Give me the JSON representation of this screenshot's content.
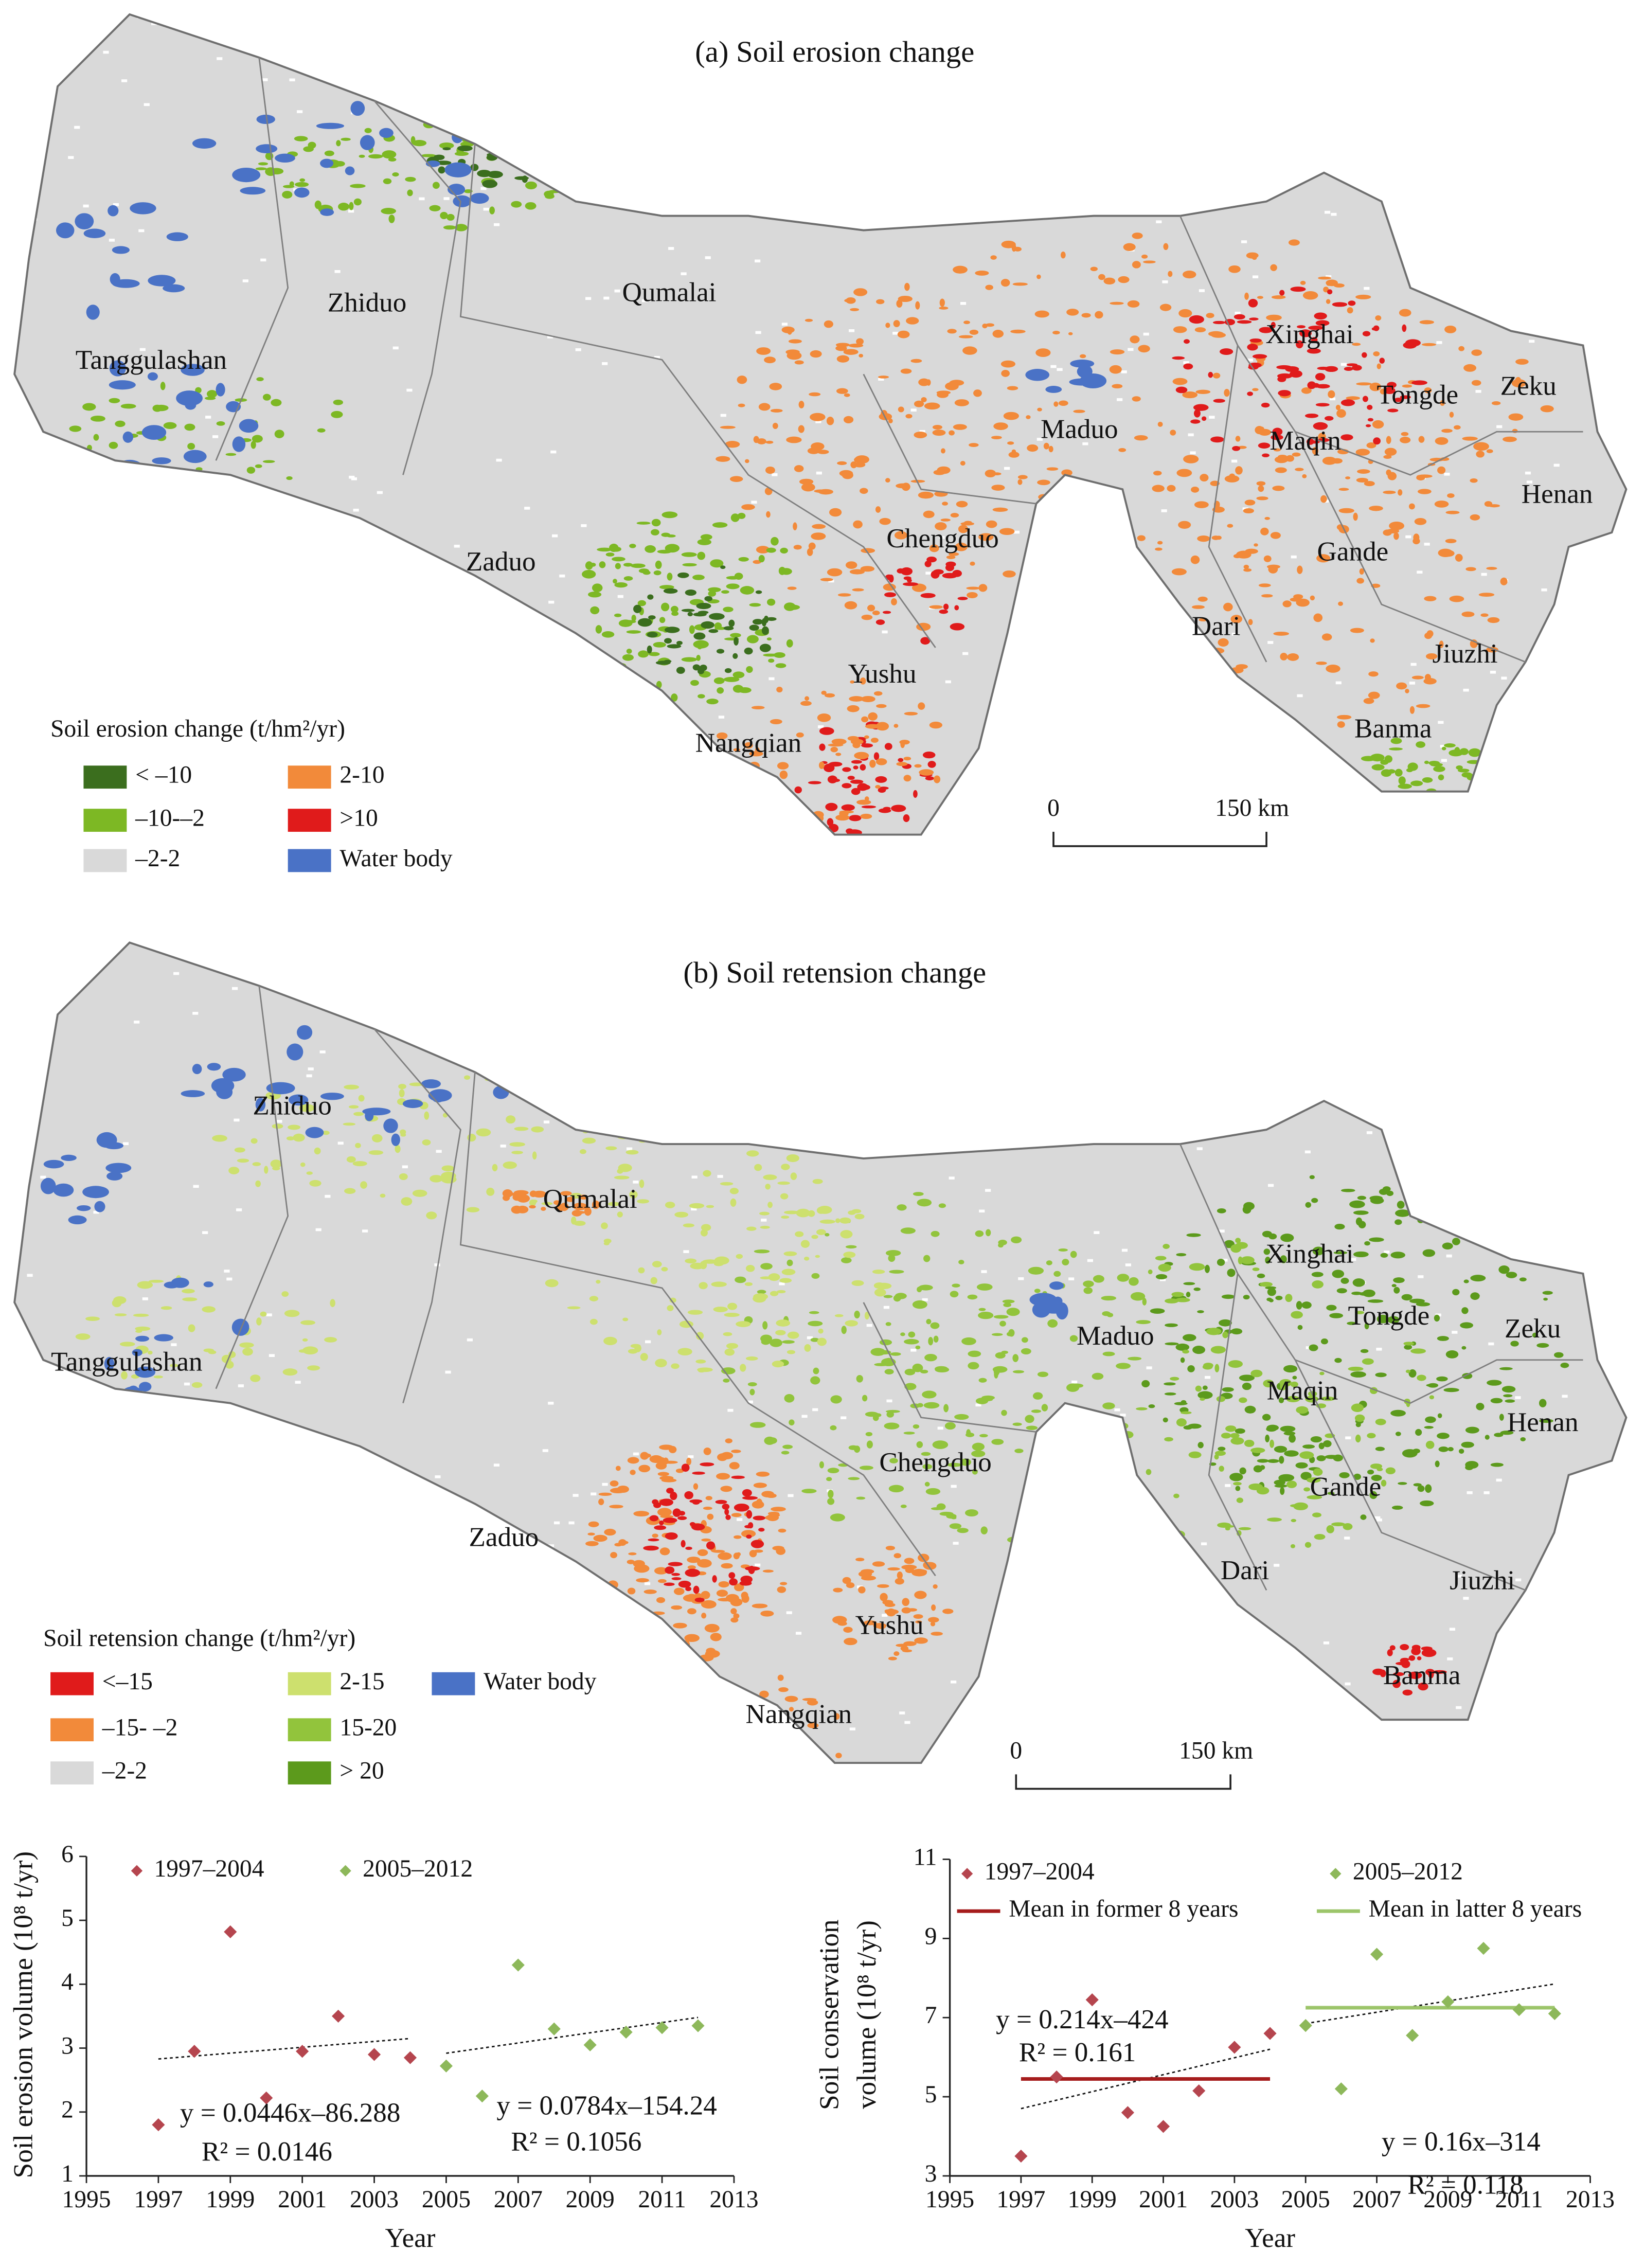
{
  "maps": [
    {
      "title": "(a) Soil erosion change",
      "legend_title": "Soil erosion change (t/hm²/yr)",
      "legend": [
        {
          "label": "< –10",
          "color": "#3b6e1e"
        },
        {
          "label": "–10-–2",
          "color": "#7db824"
        },
        {
          "label": "–2-2",
          "color": "#d9d9d9"
        },
        {
          "label": "2-10",
          "color": "#f28a3a"
        },
        {
          "label": ">10",
          "color": "#e01b1b"
        },
        {
          "label": "Water body",
          "color": "#4a72c6"
        }
      ],
      "places": [
        "Tanggulashan",
        "Zhiduo",
        "Qumalai",
        "Zaduo",
        "Chengduo",
        "Yushu",
        "Nangqian",
        "Maduo",
        "Xinghai",
        "Tongde",
        "Zeku",
        "Maqin",
        "Henan",
        "Gande",
        "Dari",
        "Jiuzhi",
        "Banma"
      ],
      "scale": [
        "0",
        "150 km"
      ]
    },
    {
      "title": "(b) Soil retension change",
      "legend_title": "Soil retension change (t/hm²/yr)",
      "legend": [
        {
          "label": "<–15",
          "color": "#e01b1b"
        },
        {
          "label": "–15- –2",
          "color": "#f28a3a"
        },
        {
          "label": "–2-2",
          "color": "#d9d9d9"
        },
        {
          "label": "2-15",
          "color": "#cde06e"
        },
        {
          "label": "15-20",
          "color": "#92c43c"
        },
        {
          "label": "> 20",
          "color": "#5c9a1c"
        },
        {
          "label": "Water body",
          "color": "#4a72c6"
        }
      ],
      "places": [
        "Zhiduo",
        "Qumalai",
        "Tanggulashan",
        "Zaduo",
        "Chengduo",
        "Yushu",
        "Nangqian",
        "Maduo",
        "Xinghai",
        "Tongde",
        "Zeku",
        "Maqin",
        "Henan",
        "Gande",
        "Dari",
        "Jiuzhi",
        "Banma"
      ],
      "scale": [
        "0",
        "150 km"
      ]
    }
  ],
  "chart_data": [
    {
      "type": "scatter",
      "ylabel": [
        "Soil erosion volume (10⁸ t/yr)"
      ],
      "xlabel": "Year",
      "xlim": [
        1995,
        2013
      ],
      "xticks": [
        1995,
        1997,
        1999,
        2001,
        2003,
        2005,
        2007,
        2009,
        2011,
        2013
      ],
      "ylim": [
        1,
        6
      ],
      "yticks": [
        1,
        2,
        3,
        4,
        5,
        6
      ],
      "series": [
        {
          "name": "1997–2004",
          "color": "#b5454e",
          "x": [
            1997,
            1998,
            1999,
            2000,
            2001,
            2002,
            2003,
            2004
          ],
          "values": [
            1.8,
            2.95,
            4.82,
            2.22,
            2.95,
            3.5,
            2.9,
            2.85
          ]
        },
        {
          "name": "2005–2012",
          "color": "#8db85a",
          "x": [
            2005,
            2006,
            2007,
            2008,
            2009,
            2010,
            2011,
            2012
          ],
          "values": [
            2.72,
            2.25,
            4.3,
            3.3,
            3.05,
            3.25,
            3.32,
            3.35
          ]
        }
      ],
      "trend_lines": [
        {
          "x": [
            1997,
            2004
          ],
          "values": [
            2.83,
            3.15
          ]
        },
        {
          "x": [
            2005,
            2012
          ],
          "values": [
            2.92,
            3.48
          ]
        }
      ],
      "annotations": [
        "y = 0.0446x–86.288",
        "R² = 0.0146",
        "y = 0.0784x–154.24",
        "R² = 0.1056"
      ]
    },
    {
      "type": "scatter",
      "ylabel": [
        "Soil conservation",
        "volume (10⁸ t/yr)"
      ],
      "xlabel": "Year",
      "xlim": [
        1995,
        2013
      ],
      "xticks": [
        1995,
        1997,
        1999,
        2001,
        2003,
        2005,
        2007,
        2009,
        2011,
        2013
      ],
      "ylim": [
        3,
        11
      ],
      "yticks": [
        3,
        5,
        7,
        9,
        11
      ],
      "series": [
        {
          "name": "1997–2004",
          "color": "#b5454e",
          "x": [
            1997,
            1998,
            1999,
            2000,
            2001,
            2002,
            2003,
            2004
          ],
          "values": [
            3.5,
            5.5,
            7.45,
            4.6,
            4.25,
            5.15,
            6.25,
            6.6
          ]
        },
        {
          "name": "2005–2012",
          "color": "#8db85a",
          "x": [
            2005,
            2006,
            2007,
            2008,
            2009,
            2010,
            2011,
            2012
          ],
          "values": [
            6.8,
            5.2,
            8.6,
            6.55,
            7.4,
            8.75,
            7.2,
            7.1
          ]
        }
      ],
      "lines": [
        {
          "name": "Mean in former 8 years",
          "color": "#a51c1c",
          "x": [
            1997,
            2004
          ],
          "values": [
            5.45,
            5.45
          ]
        },
        {
          "name": "Mean in latter 8 years",
          "color": "#9cc56a",
          "x": [
            2005,
            2012
          ],
          "values": [
            7.25,
            7.25
          ]
        }
      ],
      "trend_lines": [
        {
          "x": [
            1997,
            2004
          ],
          "values": [
            4.7,
            6.2
          ]
        },
        {
          "x": [
            2005,
            2012
          ],
          "values": [
            6.85,
            7.85
          ]
        }
      ],
      "annotations": [
        "y = 0.214x–424",
        "R² = 0.161",
        "y = 0.16x–314",
        "R² = 0.118"
      ]
    }
  ]
}
